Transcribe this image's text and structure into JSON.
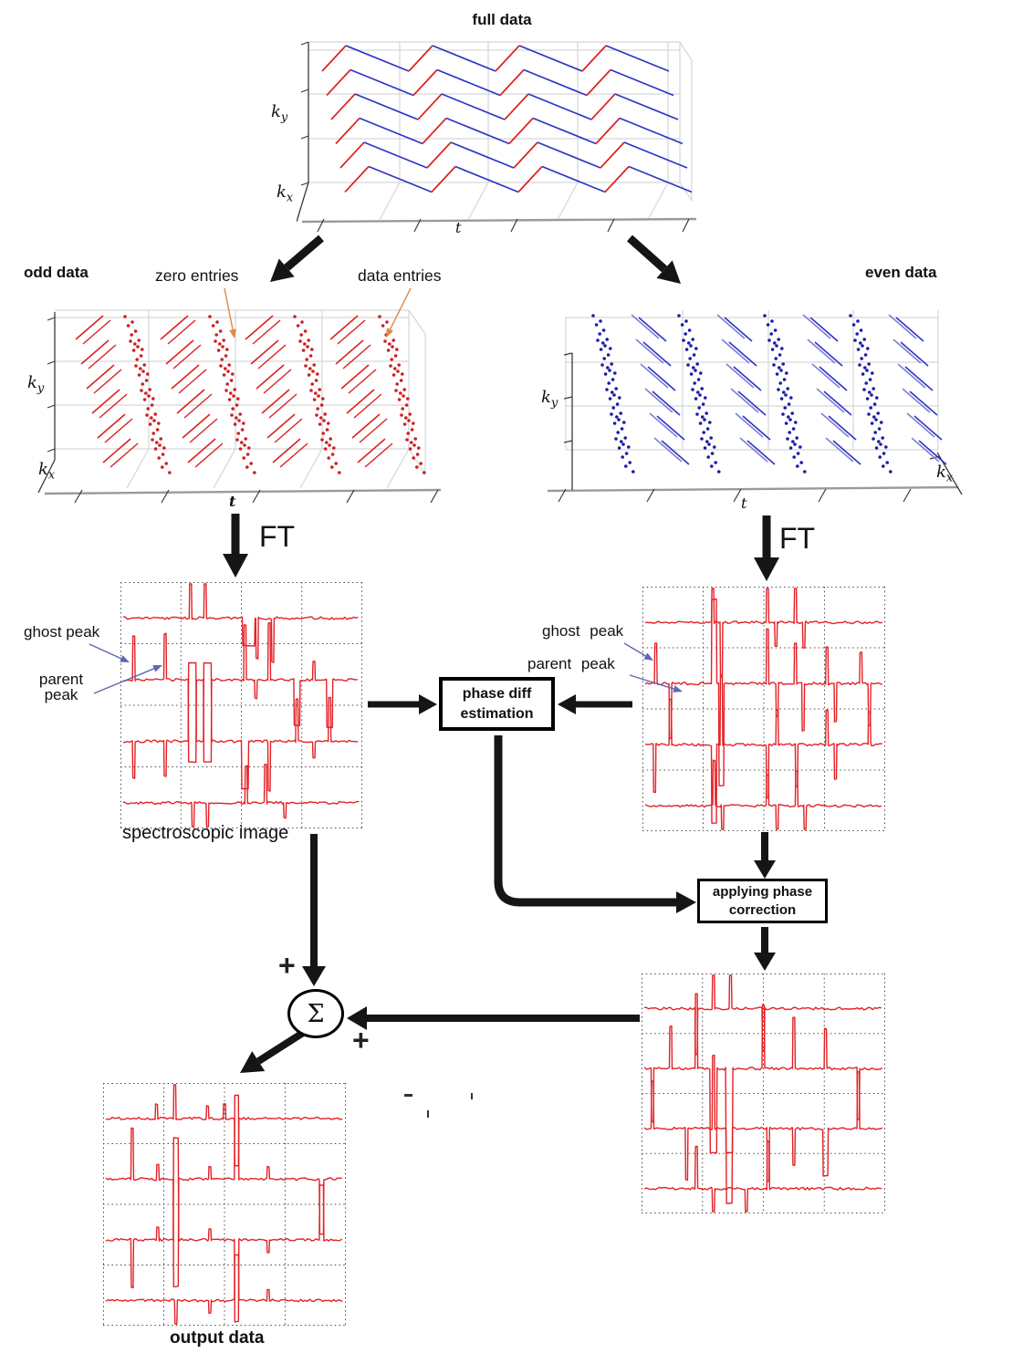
{
  "labels": {
    "full_title": "full data",
    "odd": "odd data",
    "even": "even data",
    "zero_entries": "zero entries",
    "data_entries": "data entries",
    "ft": "FT",
    "ghost_peak": "ghost peak",
    "parent_peak_line1": "parent",
    "parent_peak_line2": "peak",
    "parent_peak": "parent peak",
    "spectroscopic": "spectroscopic image",
    "output": "output data",
    "phase_box_line1": "phase diff",
    "phase_box_line2": "estimation",
    "apply_box_line1": "applying phase",
    "apply_box_line2": "correction",
    "sigma": "Σ",
    "plus": "+"
  },
  "axes": {
    "k": "k",
    "sub_y": "y",
    "sub_x": "x",
    "t": "t"
  },
  "colors": {
    "zigzag_red": "#dd2121",
    "zigzag_blue": "#2d35c4",
    "light_blue": "#8282d6",
    "dot_blue": "#1c1ca6",
    "dot_red": "#cc2020",
    "spectrum_red": "#e32126",
    "grid_gray": "#d6d6d6",
    "axis_dark": "#3a3a3a",
    "floor_gray": "#9a9a9a",
    "arrow_black": "#151515",
    "annotation_blue": "#6067b3",
    "annotation_orange": "#dd8a40",
    "dotted_grid": "#4a4a4a"
  }
}
